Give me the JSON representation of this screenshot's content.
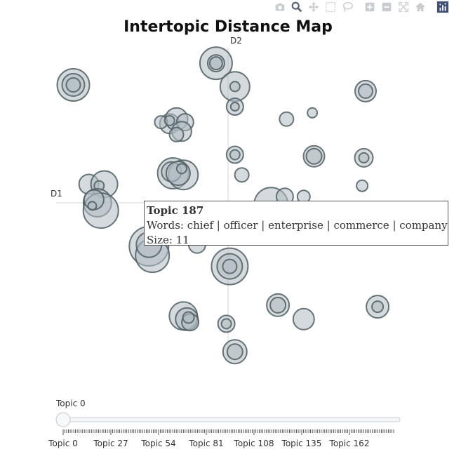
{
  "modebar": {
    "buttons": [
      "camera-icon",
      "zoom-icon",
      "pan-icon",
      "box-select-icon",
      "lasso-icon",
      "zoom-in-icon",
      "zoom-out-icon",
      "autoscale-icon",
      "reset-axes-icon",
      "plotly-logo-icon"
    ],
    "colors": {
      "default": "#c8ccd0",
      "active": "#5a6572",
      "logo": "#3f4f75"
    }
  },
  "tooltip": {
    "title": "Topic 187",
    "words": "Words: chief | officer | enterprise | commerce | company",
    "size": "Size: 11"
  },
  "slider": {
    "current_label": "Topic 0",
    "value": 0,
    "min": 0,
    "max": 187,
    "tick_labels": [
      "Topic 0",
      "Topic 27",
      "Topic 54",
      "Topic 81",
      "Topic 108",
      "Topic 135",
      "Topic 162"
    ],
    "tick_values": [
      0,
      27,
      54,
      81,
      108,
      135,
      162
    ]
  },
  "chart_data": {
    "type": "scatter",
    "title": "Intertopic Distance Map",
    "xlabel": "D1",
    "ylabel": "D2",
    "xlim": [
      -10,
      10
    ],
    "ylim": [
      -10,
      10
    ],
    "grid": false,
    "legend": "none",
    "marker_fill": "#b0bcc3",
    "marker_stroke": "#4f5e62",
    "points": [
      {
        "x": -9.0,
        "y": 7.6,
        "r": 23
      },
      {
        "x": -9.0,
        "y": 7.6,
        "r": 16
      },
      {
        "x": -9.0,
        "y": 7.6,
        "r": 10
      },
      {
        "x": -0.7,
        "y": 9.0,
        "r": 23
      },
      {
        "x": -0.7,
        "y": 9.0,
        "r": 12
      },
      {
        "x": -0.7,
        "y": 9.0,
        "r": 9
      },
      {
        "x": 0.4,
        "y": 7.5,
        "r": 21
      },
      {
        "x": 0.4,
        "y": 7.5,
        "r": 7
      },
      {
        "x": 0.4,
        "y": 6.2,
        "r": 12
      },
      {
        "x": 0.4,
        "y": 6.2,
        "r": 6
      },
      {
        "x": 8.0,
        "y": 7.2,
        "r": 15
      },
      {
        "x": 8.0,
        "y": 7.2,
        "r": 10
      },
      {
        "x": 3.4,
        "y": 5.4,
        "r": 10
      },
      {
        "x": 4.9,
        "y": 5.8,
        "r": 7
      },
      {
        "x": -3.4,
        "y": 5.1,
        "r": 14
      },
      {
        "x": -3.0,
        "y": 5.4,
        "r": 16
      },
      {
        "x": -2.5,
        "y": 5.2,
        "r": 12
      },
      {
        "x": -2.7,
        "y": 4.6,
        "r": 14
      },
      {
        "x": -3.9,
        "y": 5.2,
        "r": 9
      },
      {
        "x": -3.4,
        "y": 5.3,
        "r": 7
      },
      {
        "x": -3.0,
        "y": 4.4,
        "r": 10
      },
      {
        "x": 0.4,
        "y": 3.1,
        "r": 12
      },
      {
        "x": 0.4,
        "y": 3.1,
        "r": 7
      },
      {
        "x": 5.0,
        "y": 3.0,
        "r": 15
      },
      {
        "x": 5.0,
        "y": 3.0,
        "r": 11
      },
      {
        "x": 7.9,
        "y": 2.9,
        "r": 13
      },
      {
        "x": 7.9,
        "y": 2.9,
        "r": 7
      },
      {
        "x": -3.2,
        "y": 1.9,
        "r": 22
      },
      {
        "x": -2.6,
        "y": 1.8,
        "r": 21
      },
      {
        "x": -3.3,
        "y": 2.0,
        "r": 14
      },
      {
        "x": -2.9,
        "y": 1.9,
        "r": 17
      },
      {
        "x": -2.7,
        "y": 2.2,
        "r": 7
      },
      {
        "x": 0.8,
        "y": 1.8,
        "r": 10
      },
      {
        "x": -8.1,
        "y": 1.2,
        "r": 14
      },
      {
        "x": -7.2,
        "y": 1.2,
        "r": 19
      },
      {
        "x": -7.5,
        "y": 1.1,
        "r": 7
      },
      {
        "x": -7.6,
        "y": 0.0,
        "r": 20
      },
      {
        "x": -7.4,
        "y": -0.5,
        "r": 25
      },
      {
        "x": -7.8,
        "y": 0.2,
        "r": 14
      },
      {
        "x": -7.9,
        "y": -0.2,
        "r": 6
      },
      {
        "x": 7.8,
        "y": 1.1,
        "r": 8
      },
      {
        "x": 2.5,
        "y": -0.1,
        "r": 24
      },
      {
        "x": 3.3,
        "y": 0.4,
        "r": 12
      },
      {
        "x": 4.4,
        "y": 0.4,
        "r": 9
      },
      {
        "x": -4.6,
        "y": -2.8,
        "r": 28
      },
      {
        "x": -4.4,
        "y": -3.4,
        "r": 24
      },
      {
        "x": -4.6,
        "y": -2.7,
        "r": 18
      },
      {
        "x": -1.8,
        "y": -2.7,
        "r": 12
      },
      {
        "x": 0.1,
        "y": -4.1,
        "r": 26
      },
      {
        "x": 0.1,
        "y": -4.1,
        "r": 18
      },
      {
        "x": 0.1,
        "y": -4.1,
        "r": 10
      },
      {
        "x": 2.9,
        "y": -6.6,
        "r": 16
      },
      {
        "x": 2.9,
        "y": -6.6,
        "r": 11
      },
      {
        "x": 4.4,
        "y": -7.5,
        "r": 15
      },
      {
        "x": 8.7,
        "y": -6.7,
        "r": 16
      },
      {
        "x": 8.7,
        "y": -6.7,
        "r": 8
      },
      {
        "x": -2.6,
        "y": -7.3,
        "r": 20
      },
      {
        "x": -2.4,
        "y": -7.5,
        "r": 16
      },
      {
        "x": -2.2,
        "y": -7.7,
        "r": 12
      },
      {
        "x": -2.3,
        "y": -7.4,
        "r": 8
      },
      {
        "x": -0.1,
        "y": -7.8,
        "r": 12
      },
      {
        "x": -0.1,
        "y": -7.8,
        "r": 7
      },
      {
        "x": 0.4,
        "y": -9.6,
        "r": 17
      },
      {
        "x": 0.4,
        "y": -9.6,
        "r": 11
      }
    ]
  }
}
